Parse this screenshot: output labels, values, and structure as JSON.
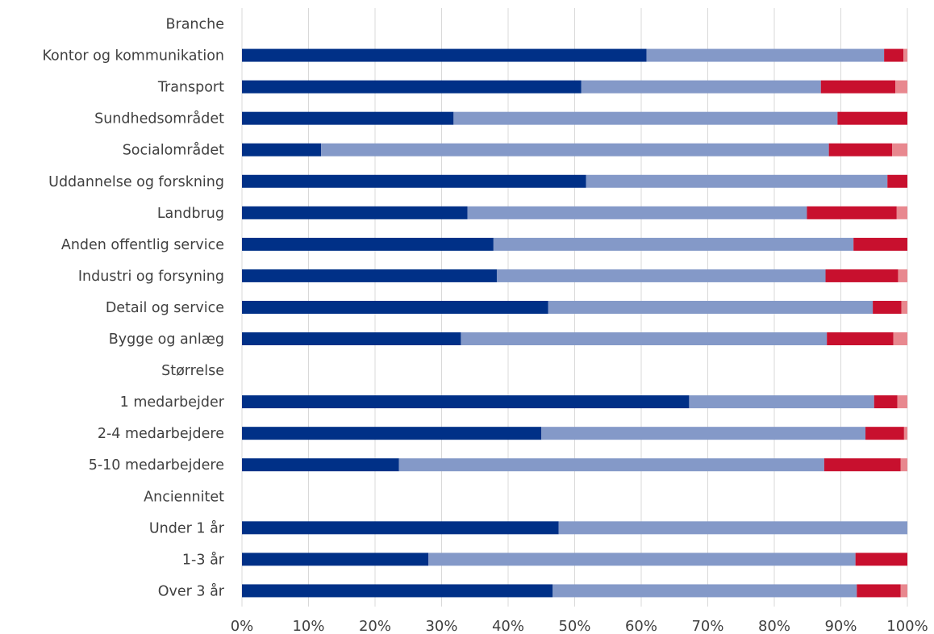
{
  "chart_data": {
    "type": "bar",
    "orientation": "horizontal",
    "stacked": true,
    "percent": true,
    "title": "",
    "xlabel": "",
    "ylabel": "",
    "xlim": [
      0,
      100
    ],
    "x_ticks": [
      "0%",
      "10%",
      "20%",
      "30%",
      "40%",
      "50%",
      "60%",
      "70%",
      "80%",
      "90%",
      "100%"
    ],
    "grid": "vertical",
    "legend": "none",
    "categories": [
      "Branche",
      "Kontor og kommunikation",
      "Transport",
      "Sundhedsområdet",
      "Socialområdet",
      "Uddannelse og forskning",
      "Landbrug",
      "Anden offentlig service",
      "Industri og forsyning",
      "Detail og service",
      "Bygge og anlæg",
      "Størrelse",
      "1 medarbejder",
      "2-4 medarbejdere",
      "5-10 medarbejdere",
      "Anciennitet",
      "Under 1 år",
      "1-3 år",
      "Over 3 år"
    ],
    "series": [
      {
        "color": "#003087",
        "values": [
          null,
          60.8,
          51,
          31.8,
          11.9,
          51.7,
          33.9,
          37.8,
          38.3,
          46,
          32.9,
          null,
          67.2,
          45,
          23.6,
          null,
          47.6,
          28,
          46.7
        ]
      },
      {
        "color": "#8499c8",
        "values": [
          null,
          35.7,
          36,
          57.7,
          76.3,
          45.3,
          51,
          54.1,
          49.4,
          48.8,
          55,
          null,
          27.8,
          48.7,
          63.9,
          null,
          52.4,
          64.2,
          45.7
        ]
      },
      {
        "color": "#c8102e",
        "values": [
          null,
          2.9,
          11.2,
          10.5,
          9.5,
          3,
          13.5,
          8.1,
          10.9,
          4.3,
          10,
          null,
          3.5,
          5.8,
          11.5,
          null,
          0,
          7.8,
          6.6
        ]
      },
      {
        "color": "#e8888f",
        "values": [
          null,
          0.6,
          1.8,
          0,
          2.3,
          0,
          1.6,
          0,
          1.4,
          0.9,
          2.1,
          null,
          1.5,
          0.5,
          1,
          null,
          0,
          0,
          1
        ]
      }
    ]
  }
}
